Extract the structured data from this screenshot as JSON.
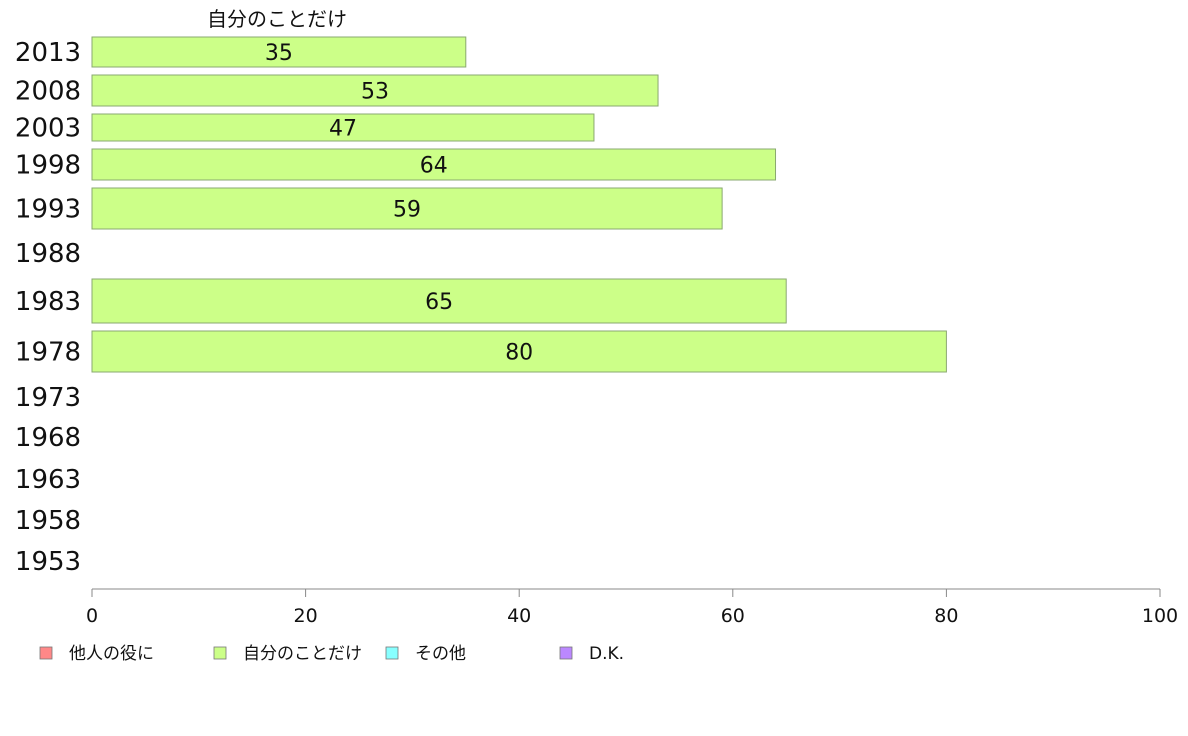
{
  "chart_data": {
    "type": "bar",
    "orientation": "horizontal",
    "title": "",
    "series_heading": "自分のことだけ",
    "categories": [
      "2013",
      "2008",
      "2003",
      "1998",
      "1993",
      "1988",
      "1983",
      "1978",
      "1973",
      "1968",
      "1963",
      "1958",
      "1953"
    ],
    "series": [
      {
        "name": "自分のことだけ",
        "values": [
          35,
          53,
          47,
          64,
          59,
          null,
          65,
          80,
          null,
          null,
          null,
          null,
          null
        ]
      }
    ],
    "xlim": [
      0,
      100
    ],
    "xticks": [
      0,
      20,
      40,
      60,
      80,
      100
    ],
    "grid": false,
    "legend": {
      "placement": "bottom",
      "items": [
        {
          "label": "他人の役に",
          "color": "#ff8888"
        },
        {
          "label": "自分のことだけ",
          "color": "#ccff88"
        },
        {
          "label": "その他",
          "color": "#88ffff"
        },
        {
          "label": "D.K.",
          "color": "#bb88ff"
        }
      ]
    },
    "bar_color": "#ccff88",
    "bar_stroke": "#8aa870"
  }
}
